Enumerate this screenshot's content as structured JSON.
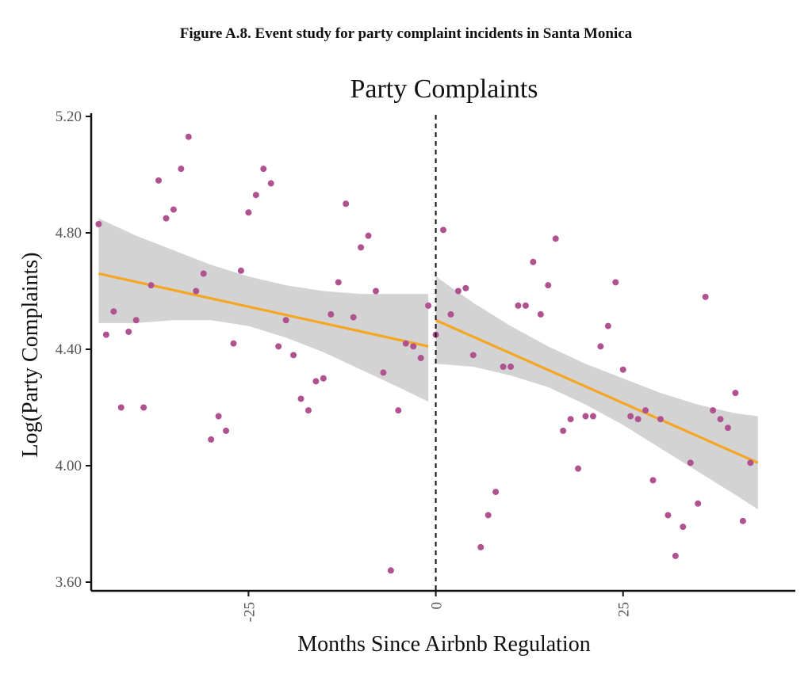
{
  "figure_caption": "Figure A.8. Event study for party complaint incidents in Santa Monica",
  "chart_data": {
    "type": "scatter",
    "title": "Party Complaints",
    "xlabel": "Months Since Airbnb Regulation",
    "ylabel": "Log(Party Complaints)",
    "xlim": [
      -46,
      48
    ],
    "ylim": [
      3.6,
      5.2
    ],
    "x_ticks": [
      -25,
      0,
      25
    ],
    "x_tick_labels": [
      "-25",
      "0",
      "25"
    ],
    "y_ticks": [
      3.6,
      4.0,
      4.4,
      4.8,
      5.2
    ],
    "y_tick_labels": [
      "3.60",
      "4.00",
      "4.40",
      "4.80",
      "5.20"
    ],
    "event_line_x": 0,
    "colors": {
      "points": "#b0528f",
      "fit": "#f5a623",
      "band": "#d3d3d3"
    },
    "points": [
      [
        -45,
        4.83
      ],
      [
        -44,
        4.45
      ],
      [
        -43,
        4.53
      ],
      [
        -42,
        4.2
      ],
      [
        -41,
        4.46
      ],
      [
        -40,
        4.5
      ],
      [
        -39,
        4.2
      ],
      [
        -38,
        4.62
      ],
      [
        -37,
        4.98
      ],
      [
        -36,
        4.85
      ],
      [
        -35,
        4.88
      ],
      [
        -34,
        5.02
      ],
      [
        -33,
        5.13
      ],
      [
        -32,
        4.6
      ],
      [
        -31,
        4.66
      ],
      [
        -30,
        4.09
      ],
      [
        -29,
        4.17
      ],
      [
        -28,
        4.12
      ],
      [
        -27,
        4.42
      ],
      [
        -26,
        4.67
      ],
      [
        -25,
        4.87
      ],
      [
        -24,
        4.93
      ],
      [
        -23,
        5.02
      ],
      [
        -22,
        4.97
      ],
      [
        -21,
        4.41
      ],
      [
        -20,
        4.5
      ],
      [
        -19,
        4.38
      ],
      [
        -18,
        4.23
      ],
      [
        -17,
        4.19
      ],
      [
        -16,
        4.29
      ],
      [
        -15,
        4.3
      ],
      [
        -14,
        4.52
      ],
      [
        -13,
        4.63
      ],
      [
        -12,
        4.9
      ],
      [
        -11,
        4.51
      ],
      [
        -10,
        4.75
      ],
      [
        -9,
        4.79
      ],
      [
        -8,
        4.6
      ],
      [
        -7,
        4.32
      ],
      [
        -6,
        3.64
      ],
      [
        -5,
        4.19
      ],
      [
        -4,
        4.42
      ],
      [
        -3,
        4.41
      ],
      [
        -2,
        4.37
      ],
      [
        -1,
        4.55
      ],
      [
        0,
        4.45
      ],
      [
        1,
        4.81
      ],
      [
        2,
        4.52
      ],
      [
        3,
        4.6
      ],
      [
        4,
        4.61
      ],
      [
        5,
        4.38
      ],
      [
        6,
        3.72
      ],
      [
        7,
        3.83
      ],
      [
        8,
        3.91
      ],
      [
        9,
        4.34
      ],
      [
        10,
        4.34
      ],
      [
        11,
        4.55
      ],
      [
        12,
        4.55
      ],
      [
        13,
        4.7
      ],
      [
        14,
        4.52
      ],
      [
        15,
        4.62
      ],
      [
        16,
        4.78
      ],
      [
        17,
        4.12
      ],
      [
        18,
        4.16
      ],
      [
        19,
        3.99
      ],
      [
        20,
        4.17
      ],
      [
        21,
        4.17
      ],
      [
        22,
        4.41
      ],
      [
        23,
        4.48
      ],
      [
        24,
        4.63
      ],
      [
        25,
        4.33
      ],
      [
        26,
        4.17
      ],
      [
        27,
        4.16
      ],
      [
        28,
        4.19
      ],
      [
        29,
        3.95
      ],
      [
        30,
        4.16
      ],
      [
        31,
        3.83
      ],
      [
        32,
        3.69
      ],
      [
        33,
        3.79
      ],
      [
        34,
        4.01
      ],
      [
        35,
        3.87
      ],
      [
        36,
        4.58
      ],
      [
        37,
        4.19
      ],
      [
        38,
        4.16
      ],
      [
        39,
        4.13
      ],
      [
        40,
        4.25
      ],
      [
        41,
        3.81
      ],
      [
        42,
        4.01
      ]
    ],
    "fit_pre": {
      "x": [
        -45,
        -1
      ],
      "y": [
        4.66,
        4.41
      ]
    },
    "fit_post": {
      "x": [
        0,
        43
      ],
      "y": [
        4.5,
        4.01
      ]
    },
    "band_pre": {
      "x": [
        -45,
        -40,
        -35,
        -30,
        -25,
        -20,
        -15,
        -10,
        -5,
        -1
      ],
      "upper": [
        4.85,
        4.79,
        4.74,
        4.69,
        4.65,
        4.62,
        4.6,
        4.59,
        4.59,
        4.59
      ],
      "lower": [
        4.49,
        4.49,
        4.5,
        4.5,
        4.48,
        4.44,
        4.39,
        4.33,
        4.27,
        4.22
      ]
    },
    "band_post": {
      "x": [
        0,
        5,
        10,
        15,
        20,
        25,
        30,
        35,
        40,
        43
      ],
      "upper": [
        4.65,
        4.56,
        4.48,
        4.41,
        4.35,
        4.3,
        4.25,
        4.21,
        4.18,
        4.17
      ],
      "lower": [
        4.35,
        4.34,
        4.31,
        4.27,
        4.21,
        4.14,
        4.06,
        3.98,
        3.9,
        3.85
      ]
    }
  }
}
